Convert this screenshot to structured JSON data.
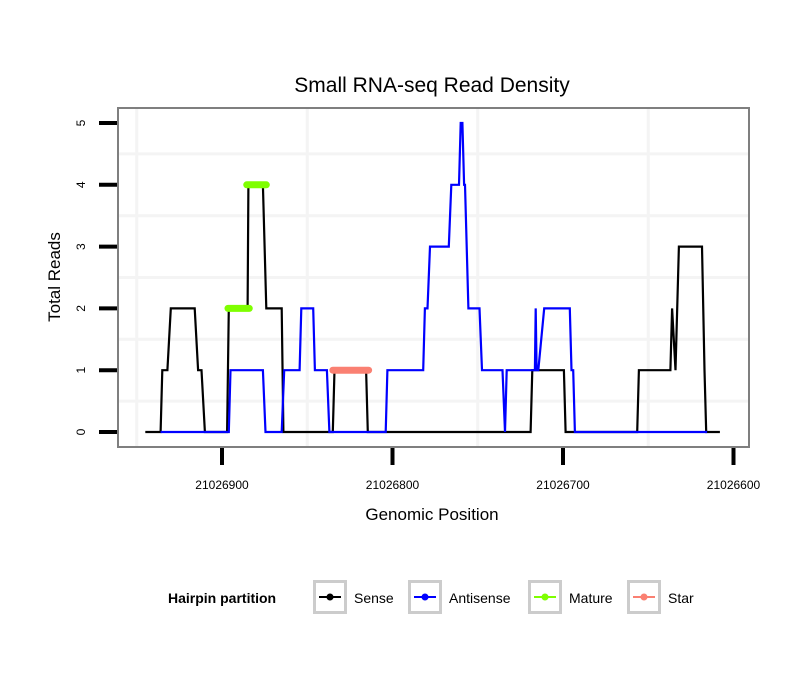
{
  "chart_data": {
    "type": "line",
    "title": "Small RNA-seq Read Density",
    "xlabel": "Genomic Position",
    "ylabel": "Total Reads",
    "xlim": [
      21026955,
      21026595
    ],
    "x_reversed": true,
    "ylim": [
      -0.2,
      5.25
    ],
    "x_ticks": [
      21026900,
      21026800,
      21026700,
      21026600
    ],
    "x_tick_labels": [
      "21026900",
      "21026800",
      "21026700",
      "21026600"
    ],
    "y_ticks": [
      0,
      1,
      2,
      3,
      4,
      5
    ],
    "y_tick_labels": [
      "0",
      "1",
      "2",
      "3",
      "4",
      "5"
    ],
    "grid": true,
    "legend": {
      "title": "Hairpin partition",
      "position": "bottom",
      "entries": [
        {
          "name": "Sense",
          "color": "#000000"
        },
        {
          "name": "Antisense",
          "color": "#0000ff"
        },
        {
          "name": "Mature",
          "color": "#7fff00"
        },
        {
          "name": "Star",
          "color": "#fa8072"
        }
      ]
    },
    "series": [
      {
        "name": "Sense",
        "color": "#000000",
        "points": [
          [
            21026945,
            0
          ],
          [
            21026936,
            0
          ],
          [
            21026935,
            1
          ],
          [
            21026932,
            1
          ],
          [
            21026930,
            2
          ],
          [
            21026916,
            2
          ],
          [
            21026914,
            1
          ],
          [
            21026912,
            1
          ],
          [
            21026910,
            0
          ],
          [
            21026897,
            0
          ],
          [
            21026896,
            2
          ],
          [
            21026885,
            2
          ],
          [
            21026884.5,
            4
          ],
          [
            21026876,
            4
          ],
          [
            21026874,
            2
          ],
          [
            21026865,
            2
          ],
          [
            21026864,
            0
          ],
          [
            21026835,
            0
          ],
          [
            21026834,
            1
          ],
          [
            21026815.5,
            1
          ],
          [
            21026814.5,
            0
          ],
          [
            21026719,
            0
          ],
          [
            21026718,
            1
          ],
          [
            21026699.5,
            1
          ],
          [
            21026698.5,
            0
          ],
          [
            21026656.5,
            0
          ],
          [
            21026655.5,
            1
          ],
          [
            21026637,
            1
          ],
          [
            21026636,
            2
          ],
          [
            21026634,
            1
          ],
          [
            21026632,
            3
          ],
          [
            21026618.5,
            3
          ],
          [
            21026617,
            1
          ],
          [
            21026616,
            0
          ],
          [
            21026608,
            0
          ]
        ]
      },
      {
        "name": "Antisense",
        "color": "#0000ff",
        "points": [
          [
            21026936,
            0
          ],
          [
            21026911,
            0
          ],
          [
            21026896,
            0
          ],
          [
            21026895,
            1
          ],
          [
            21026876,
            1
          ],
          [
            21026874.5,
            0
          ],
          [
            21026865,
            0
          ],
          [
            21026863.5,
            1
          ],
          [
            21026854.5,
            1
          ],
          [
            21026853.5,
            2
          ],
          [
            21026846.5,
            2
          ],
          [
            21026845.5,
            1
          ],
          [
            21026838.5,
            1
          ],
          [
            21026837,
            0
          ],
          [
            21026804,
            0
          ],
          [
            21026803,
            1
          ],
          [
            21026782,
            1
          ],
          [
            21026781,
            2
          ],
          [
            21026779.5,
            2
          ],
          [
            21026778,
            3
          ],
          [
            21026767,
            3
          ],
          [
            21026765.5,
            4
          ],
          [
            21026761,
            4
          ],
          [
            21026760,
            5
          ],
          [
            21026759,
            5
          ],
          [
            21026758,
            4
          ],
          [
            21026757.5,
            4
          ],
          [
            21026755.5,
            2
          ],
          [
            21026749,
            2
          ],
          [
            21026747.5,
            1
          ],
          [
            21026735.5,
            1
          ],
          [
            21026734,
            0
          ],
          [
            21026733,
            1
          ],
          [
            21026716.5,
            1
          ],
          [
            21026716,
            2
          ],
          [
            21026715.5,
            1
          ],
          [
            21026714.5,
            1
          ],
          [
            21026711,
            2
          ],
          [
            21026696,
            2
          ],
          [
            21026695,
            1
          ],
          [
            21026694,
            1
          ],
          [
            21026693,
            0
          ],
          [
            21026656,
            0
          ],
          [
            21026615.5,
            0
          ]
        ]
      },
      {
        "name": "Mature",
        "color": "#7fff00",
        "segments": [
          {
            "start": 21026896.5,
            "end": 21026884,
            "value": 2
          },
          {
            "start": 21026885.5,
            "end": 21026874,
            "value": 4
          }
        ]
      },
      {
        "name": "Star",
        "color": "#fa8072",
        "segments": [
          {
            "start": 21026835,
            "end": 21026814,
            "value": 1
          }
        ]
      }
    ]
  }
}
